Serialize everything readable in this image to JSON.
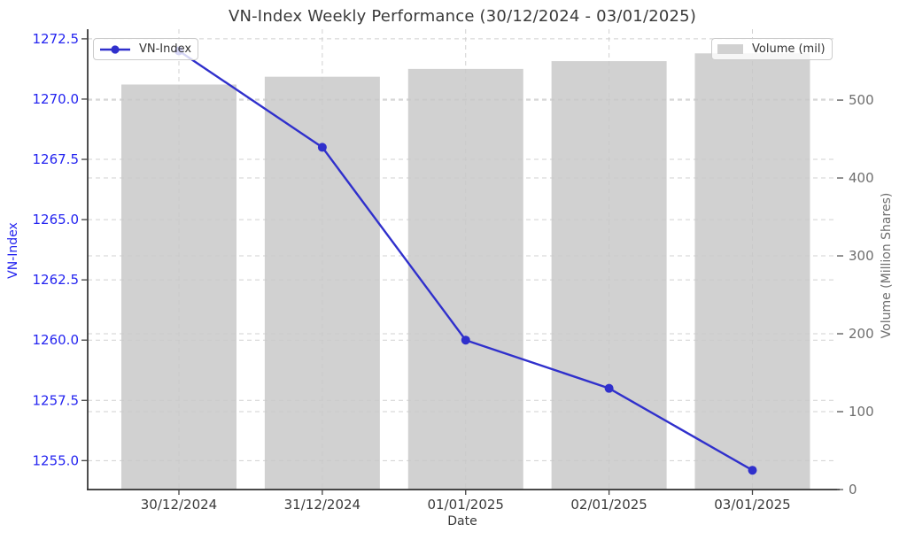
{
  "chart_data": {
    "type": "line",
    "title": "VN-Index Weekly Performance (30/12/2024 - 03/01/2025)",
    "xlabel": "Date",
    "ylabel_left": "VN-Index",
    "ylabel_right": "Volume (Million Shares)",
    "categories": [
      "30/12/2024",
      "31/12/2024",
      "01/01/2025",
      "02/01/2025",
      "03/01/2025"
    ],
    "series": [
      {
        "name": "VN-Index",
        "type": "line",
        "axis": "left",
        "color": "#3030cc",
        "marker": "circle",
        "values": [
          1272.0,
          1268.0,
          1260.0,
          1258.0,
          1254.6
        ]
      },
      {
        "name": "Volume (mil)",
        "type": "bar",
        "axis": "right",
        "color": "#d1d1d1",
        "values": [
          520,
          530,
          540,
          550,
          560
        ]
      }
    ],
    "left_axis": {
      "ticks": [
        1255.0,
        1257.5,
        1260.0,
        1262.5,
        1265.0,
        1267.5,
        1270.0,
        1272.5
      ],
      "tick_labels": [
        "1255.0",
        "1257.5",
        "1260.0",
        "1262.5",
        "1265.0",
        "1267.5",
        "1270.0",
        "1272.5"
      ],
      "lim": [
        1253.8,
        1272.9
      ]
    },
    "right_axis": {
      "ticks": [
        0,
        100,
        200,
        300,
        400,
        500
      ],
      "tick_labels": [
        "0",
        "100",
        "200",
        "300",
        "400",
        "500"
      ],
      "lim": [
        0,
        591
      ]
    },
    "grid": true,
    "legend": {
      "left_entry": "VN-Index",
      "right_entry": "Volume (mil)",
      "left_position": "upper left",
      "right_position": "upper right"
    }
  },
  "colors": {
    "line_blue": "#3030cc",
    "tick_label_blue": "#2424f0",
    "bar_gray": "#d1d1d1",
    "grid_gray": "#c9c9c9",
    "text_dark": "#3a3a3a",
    "text_gray": "#6e6e6e",
    "spine_dark": "#2f2f2f",
    "background": "#ffffff"
  }
}
